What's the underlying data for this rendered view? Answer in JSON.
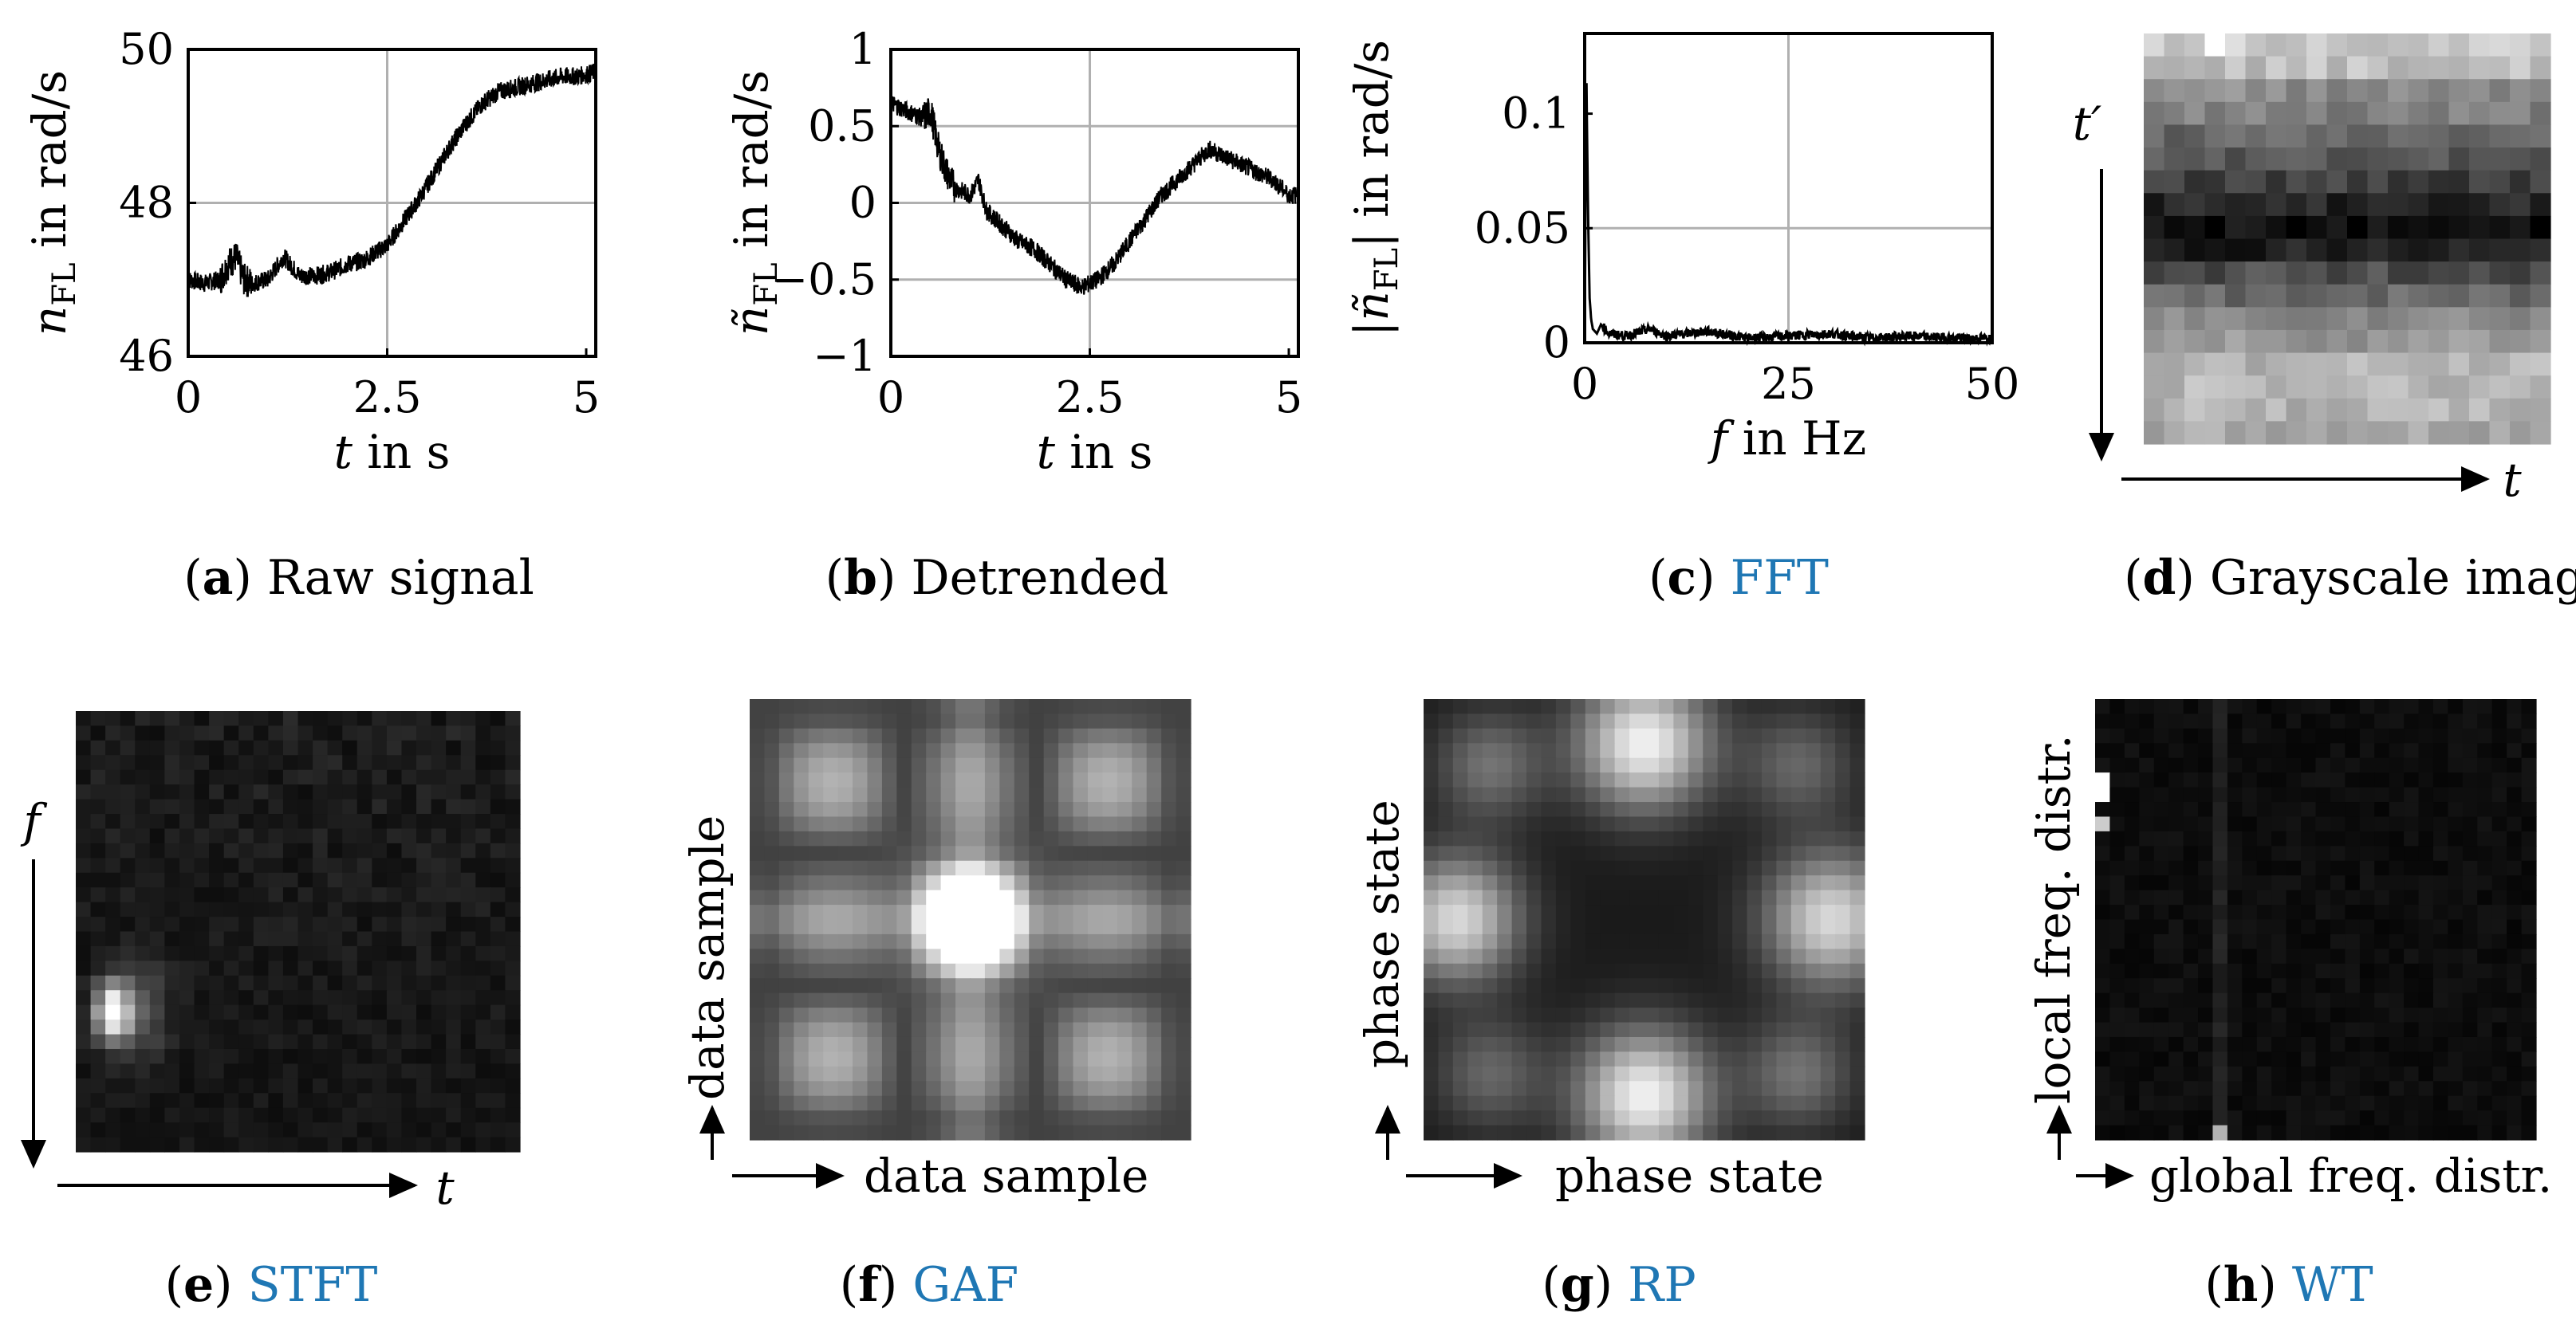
{
  "chart_data": [
    {
      "panel": "a",
      "type": "line",
      "caption": {
        "letter": "a",
        "text": "Raw signal",
        "linked": false
      },
      "xlabel": "t in s",
      "ylabel": "n_FL in rad/s",
      "xlim": [
        0,
        5.12
      ],
      "ylim": [
        46,
        50
      ],
      "xticks": [
        0,
        2.5,
        5
      ],
      "xtick_labels": [
        "0",
        "2.5",
        "5"
      ],
      "yticks": [
        46,
        48,
        50
      ],
      "ytick_labels": [
        "46",
        "48",
        "50"
      ],
      "grid": true,
      "x": [
        0,
        0.2,
        0.4,
        0.5,
        0.6,
        0.7,
        0.8,
        1.0,
        1.2,
        1.4,
        1.6,
        1.8,
        2.0,
        2.2,
        2.5,
        2.7,
        2.9,
        3.1,
        3.3,
        3.5,
        3.7,
        3.9,
        4.1,
        4.3,
        4.5,
        4.7,
        4.9,
        5.1
      ],
      "values": [
        47.0,
        46.95,
        47.0,
        47.2,
        47.3,
        47.0,
        46.95,
        47.0,
        47.3,
        47.05,
        47.05,
        47.1,
        47.2,
        47.25,
        47.45,
        47.75,
        48.05,
        48.4,
        48.75,
        49.05,
        49.3,
        49.45,
        49.5,
        49.55,
        49.6,
        49.65,
        49.65,
        49.7
      ],
      "noise_amp": 0.12
    },
    {
      "panel": "b",
      "type": "line",
      "caption": {
        "letter": "b",
        "text": "Detrended",
        "linked": false
      },
      "xlabel": "t in s",
      "ylabel": "ñ_FL in rad/s",
      "xlim": [
        0,
        5.12
      ],
      "ylim": [
        -1,
        1
      ],
      "xticks": [
        0,
        2.5,
        5
      ],
      "xtick_labels": [
        "0",
        "2.5",
        "5"
      ],
      "yticks": [
        -1,
        -0.5,
        0,
        0.5,
        1
      ],
      "ytick_labels": [
        "−1",
        "−0.5",
        "0",
        "0.5",
        "1"
      ],
      "grid": true,
      "x": [
        0,
        0.2,
        0.4,
        0.5,
        0.6,
        0.7,
        0.8,
        1.0,
        1.1,
        1.2,
        1.4,
        1.6,
        1.8,
        2.0,
        2.2,
        2.4,
        2.6,
        2.8,
        3.0,
        3.2,
        3.4,
        3.6,
        3.8,
        4.0,
        4.2,
        4.4,
        4.6,
        4.8,
        5.0,
        5.1
      ],
      "values": [
        0.65,
        0.6,
        0.55,
        0.6,
        0.35,
        0.2,
        0.1,
        0.05,
        0.15,
        -0.05,
        -0.15,
        -0.25,
        -0.3,
        -0.4,
        -0.5,
        -0.55,
        -0.5,
        -0.4,
        -0.25,
        -0.1,
        0.05,
        0.15,
        0.25,
        0.35,
        0.3,
        0.25,
        0.2,
        0.15,
        0.05,
        0.05
      ],
      "noise_amp": 0.06
    },
    {
      "panel": "c",
      "type": "line",
      "caption": {
        "letter": "c",
        "text": "FFT",
        "linked": true
      },
      "xlabel": "f in Hz",
      "ylabel": "|ñ_FL| in rad/s",
      "xlim": [
        0,
        50
      ],
      "ylim": [
        0,
        0.135
      ],
      "xticks": [
        0,
        25,
        50
      ],
      "xtick_labels": [
        "0",
        "25",
        "50"
      ],
      "yticks": [
        0,
        0.05,
        0.1
      ],
      "ytick_labels": [
        "0",
        "0.05",
        "0.1"
      ],
      "grid": true,
      "x": [
        0,
        0.2,
        0.4,
        0.6,
        0.8,
        1.0,
        1.5,
        2.0,
        3,
        5,
        8,
        10,
        15,
        20,
        25,
        30,
        35,
        40,
        45,
        50
      ],
      "values": [
        0.0,
        0.12,
        0.06,
        0.02,
        0.01,
        0.006,
        0.004,
        0.008,
        0.004,
        0.003,
        0.006,
        0.003,
        0.005,
        0.002,
        0.003,
        0.004,
        0.002,
        0.003,
        0.002,
        0.002
      ]
    },
    {
      "panel": "d",
      "type": "heatmap",
      "cmap": "gray",
      "caption": {
        "letter": "d",
        "text": "Grayscale image",
        "linked": false
      },
      "xlabel": "t",
      "ylabel": "t′",
      "columns": 20,
      "row_values": [
        0.8,
        0.75,
        0.55,
        0.5,
        0.4,
        0.35,
        0.25,
        0.15,
        0.05,
        0.12,
        0.3,
        0.4,
        0.55,
        0.6,
        0.7,
        0.72,
        0.7,
        0.65
      ],
      "hot_row": {
        "row": 0,
        "col": 3,
        "value": 1.0
      }
    },
    {
      "panel": "e",
      "type": "heatmap",
      "cmap": "gray",
      "caption": {
        "letter": "e",
        "text": "STFT",
        "linked": true
      },
      "xlabel": "t",
      "ylabel": "f",
      "columns": 30,
      "rows": 30,
      "peak": {
        "row": 20,
        "col": 2,
        "value": 1.0
      }
    },
    {
      "panel": "f",
      "type": "heatmap",
      "cmap": "gray",
      "caption": {
        "letter": "f",
        "text": "GAF",
        "linked": true
      },
      "xlabel": "data sample",
      "ylabel": "data sample",
      "columns": 30,
      "rows": 30
    },
    {
      "panel": "g",
      "type": "heatmap",
      "cmap": "gray",
      "caption": {
        "letter": "g",
        "text": "RP",
        "linked": true
      },
      "xlabel": "phase state",
      "ylabel": "phase state",
      "columns": 30,
      "rows": 30
    },
    {
      "panel": "h",
      "type": "heatmap",
      "cmap": "gray",
      "caption": {
        "letter": "h",
        "text": "WT",
        "linked": true
      },
      "xlabel": "global freq. distr.",
      "ylabel": "local freq. distr.",
      "columns": 30,
      "rows": 30
    }
  ],
  "colors": {
    "link": "#1f77b4",
    "grid": "#b0b0b0",
    "line": "#000000"
  }
}
